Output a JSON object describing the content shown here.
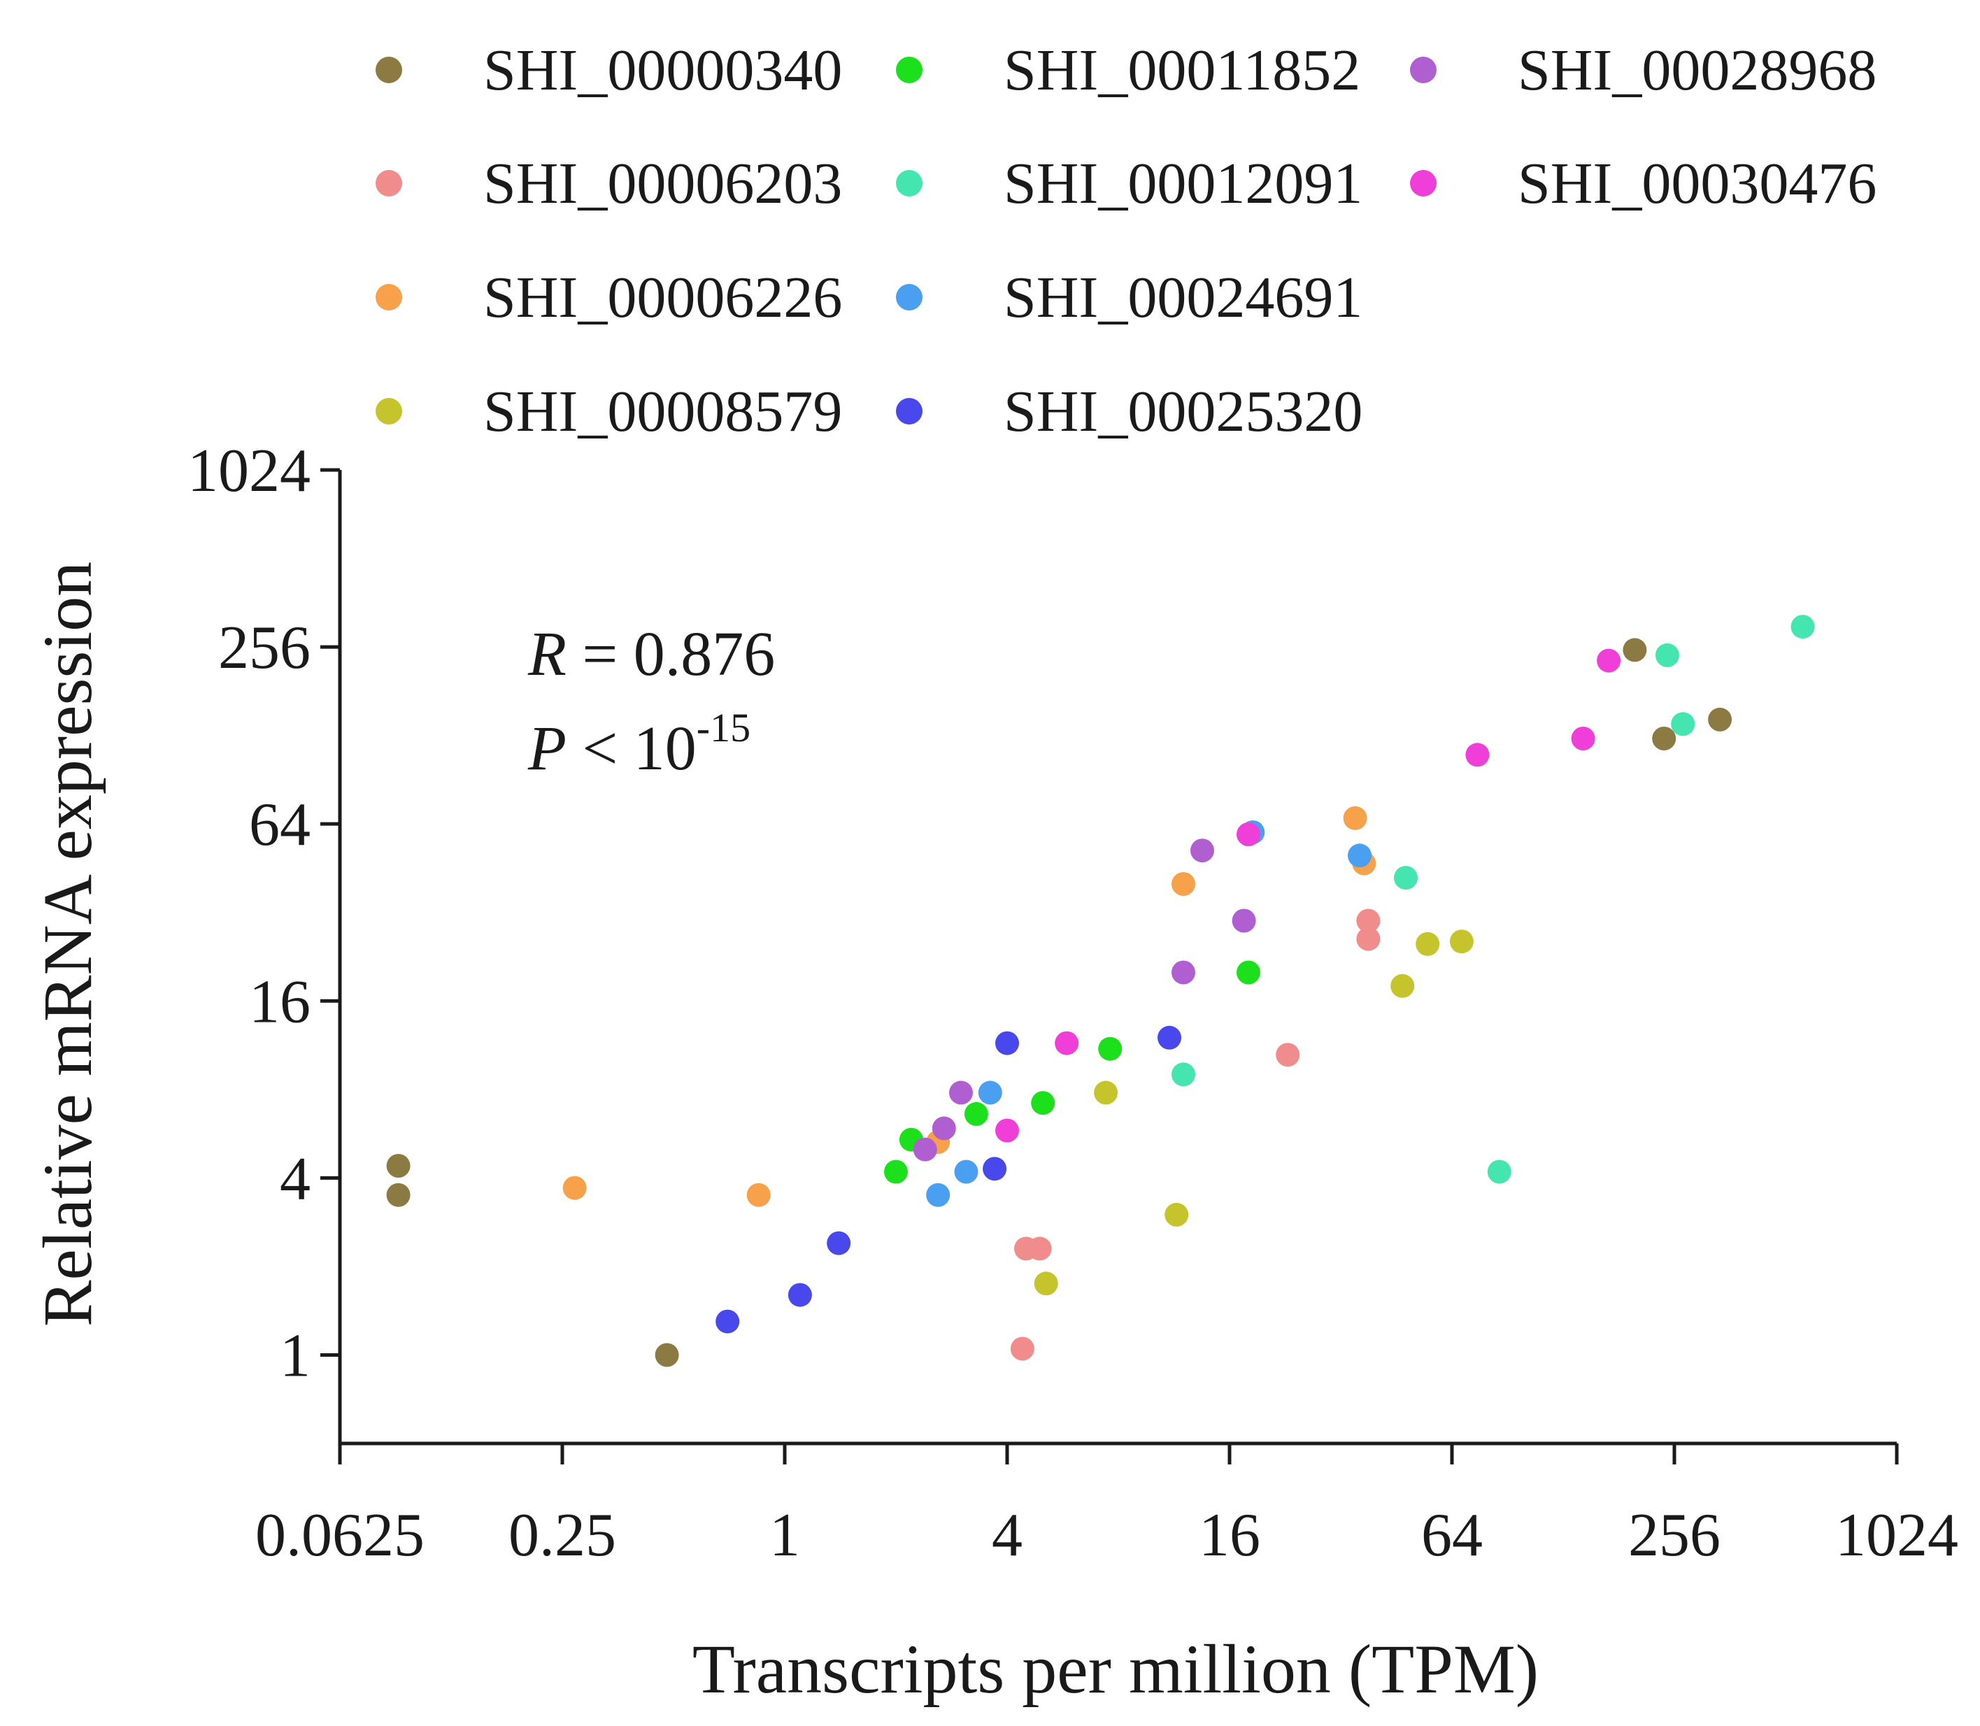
{
  "chart_data": {
    "type": "scatter",
    "xlabel": "Transcripts per million (TPM)",
    "ylabel": "Relative mRNA expression",
    "x_scale": "log2",
    "y_scale": "log2",
    "xlim": [
      0.0625,
      1024
    ],
    "ylim": [
      0.5,
      1024
    ],
    "x_ticks": [
      0.0625,
      0.25,
      1,
      4,
      16,
      64,
      256,
      1024
    ],
    "x_tick_labels": [
      "0.0625",
      "0.25",
      "1",
      "4",
      "16",
      "64",
      "256",
      "1024"
    ],
    "y_ticks": [
      1,
      4,
      16,
      64,
      256,
      1024
    ],
    "y_tick_labels": [
      "1",
      "4",
      "16",
      "64",
      "256",
      "1024"
    ],
    "legend_position": "top",
    "annotations": {
      "r_label": "R",
      "r_value": " = 0.876",
      "p_label": "P",
      "p_value": " < 10",
      "p_exponent": "-15"
    },
    "series": [
      {
        "name": "SHI_00000340",
        "color": "#8b7b42",
        "points": [
          [
            0.09,
            4.4
          ],
          [
            0.09,
            3.5
          ],
          [
            0.48,
            1.0
          ],
          [
            200,
            250
          ],
          [
            240,
            125
          ],
          [
            340,
            145
          ]
        ]
      },
      {
        "name": "SHI_00006203",
        "color": "#f08c8c",
        "points": [
          [
            4.5,
            2.3
          ],
          [
            4.9,
            2.3
          ],
          [
            4.4,
            1.05
          ],
          [
            23,
            10.5
          ],
          [
            38,
            30
          ],
          [
            38,
            26
          ]
        ]
      },
      {
        "name": "SHI_00006226",
        "color": "#f7a24a",
        "points": [
          [
            0.27,
            3.7
          ],
          [
            0.85,
            3.5
          ],
          [
            2.6,
            5.3
          ],
          [
            12,
            40
          ],
          [
            35,
            67
          ],
          [
            37,
            47
          ]
        ]
      },
      {
        "name": "SHI_00008579",
        "color": "#c5c42c",
        "points": [
          [
            5.1,
            1.75
          ],
          [
            7.4,
            7.8
          ],
          [
            11.5,
            3.0
          ],
          [
            47,
            18
          ],
          [
            55,
            25
          ],
          [
            68,
            25.5
          ]
        ]
      },
      {
        "name": "SHI_00011852",
        "color": "#1be01b",
        "points": [
          [
            2.0,
            4.2
          ],
          [
            2.2,
            5.4
          ],
          [
            3.3,
            6.6
          ],
          [
            5.0,
            7.2
          ],
          [
            7.6,
            11
          ],
          [
            18,
            20
          ]
        ]
      },
      {
        "name": "SHI_00012091",
        "color": "#45e5b0",
        "points": [
          [
            12,
            9.0
          ],
          [
            48,
            42
          ],
          [
            86,
            4.2
          ],
          [
            245,
            240
          ],
          [
            270,
            140
          ],
          [
            570,
            300
          ]
        ]
      },
      {
        "name": "SHI_00024691",
        "color": "#4b9ff0",
        "points": [
          [
            2.6,
            3.5
          ],
          [
            3.1,
            4.2
          ],
          [
            3.6,
            7.8
          ],
          [
            18.5,
            60
          ],
          [
            36,
            50
          ]
        ]
      },
      {
        "name": "SHI_00025320",
        "color": "#4848ec",
        "points": [
          [
            0.7,
            1.3
          ],
          [
            1.1,
            1.6
          ],
          [
            1.4,
            2.4
          ],
          [
            3.7,
            4.3
          ],
          [
            4.0,
            11.5
          ],
          [
            11,
            12
          ]
        ]
      },
      {
        "name": "SHI_00028968",
        "color": "#b05fd0",
        "points": [
          [
            2.4,
            5.0
          ],
          [
            2.7,
            5.9
          ],
          [
            3.0,
            7.8
          ],
          [
            12,
            20
          ],
          [
            13.5,
            52
          ],
          [
            17.5,
            30
          ]
        ]
      },
      {
        "name": "SHI_00030476",
        "color": "#f03ed8",
        "points": [
          [
            4.0,
            5.8
          ],
          [
            5.8,
            11.5
          ],
          [
            18,
            59
          ],
          [
            75,
            110
          ],
          [
            145,
            125
          ],
          [
            170,
            230
          ]
        ]
      }
    ]
  }
}
